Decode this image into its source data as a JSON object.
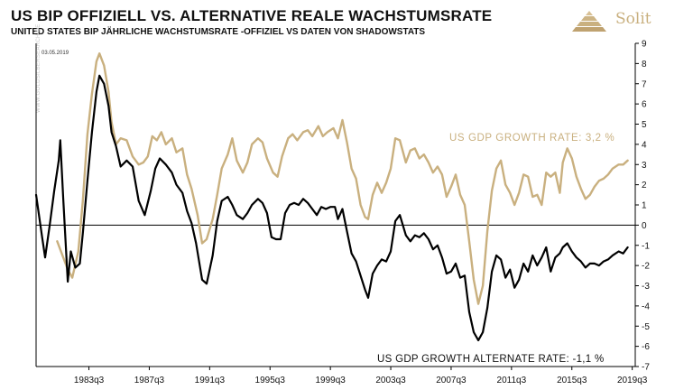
{
  "chart_data": {
    "type": "line",
    "title": "US BIP OFFIZIELL VS. ALTERNATIVE REALE WACHSTUMSRATE",
    "subtitle": "UNITED STATES BIP JÄHRLICHE WACHSTUMSRATE -OFFIZIEL VS  DATEN  VON  SHADOWSTATS",
    "date_label": "03.05.2019",
    "watermark": "WWW.GOLDSILBERSEARCH.DE",
    "brand": "Solit",
    "x_tick_labels": [
      "1983q3",
      "1987q3",
      "1991q3",
      "1995q3",
      "1999q3",
      "2003q3",
      "2007q3",
      "2011q3",
      "2015q3",
      "2019q3"
    ],
    "x_tick_years": [
      1983.5,
      1987.5,
      1991.5,
      1995.5,
      1999.5,
      2003.5,
      2007.5,
      2011.5,
      2015.5,
      2019.5
    ],
    "xlim": [
      1980.0,
      2019.7
    ],
    "ylim": [
      -7,
      9
    ],
    "y_ticks": [
      9,
      8,
      7,
      6,
      5,
      4,
      3,
      2,
      1,
      0,
      -1,
      -2,
      -3,
      -4,
      -5,
      -6,
      -7
    ],
    "annotations": {
      "official": "US GDP GROWTH RATE: 3,2 %",
      "alternate": "US GDP GROWTH ALTERNATE RATE: -1,1 %"
    },
    "series": [
      {
        "name": "US GDP growth rate (official)",
        "color": "#c9b07f",
        "points": [
          [
            1981.4,
            -0.8
          ],
          [
            1981.8,
            -1.6
          ],
          [
            1982.1,
            -2.2
          ],
          [
            1982.4,
            -2.6
          ],
          [
            1982.8,
            -1.3
          ],
          [
            1983.1,
            1.2
          ],
          [
            1983.4,
            4.5
          ],
          [
            1983.7,
            6.5
          ],
          [
            1984.0,
            8.1
          ],
          [
            1984.2,
            8.5
          ],
          [
            1984.5,
            7.9
          ],
          [
            1984.8,
            6.6
          ],
          [
            1985.0,
            5.1
          ],
          [
            1985.3,
            4.0
          ],
          [
            1985.6,
            4.3
          ],
          [
            1986.0,
            4.2
          ],
          [
            1986.4,
            3.4
          ],
          [
            1986.8,
            3.0
          ],
          [
            1987.1,
            3.1
          ],
          [
            1987.4,
            3.4
          ],
          [
            1987.7,
            4.4
          ],
          [
            1988.0,
            4.2
          ],
          [
            1988.3,
            4.6
          ],
          [
            1988.6,
            4.0
          ],
          [
            1989.0,
            4.3
          ],
          [
            1989.3,
            3.6
          ],
          [
            1989.7,
            3.8
          ],
          [
            1990.0,
            2.5
          ],
          [
            1990.3,
            1.8
          ],
          [
            1990.7,
            0.5
          ],
          [
            1991.0,
            -0.9
          ],
          [
            1991.3,
            -0.7
          ],
          [
            1991.7,
            0.3
          ],
          [
            1992.0,
            1.5
          ],
          [
            1992.3,
            2.8
          ],
          [
            1992.7,
            3.5
          ],
          [
            1993.0,
            4.3
          ],
          [
            1993.3,
            3.2
          ],
          [
            1993.7,
            2.6
          ],
          [
            1994.0,
            3.1
          ],
          [
            1994.3,
            4.0
          ],
          [
            1994.7,
            4.3
          ],
          [
            1995.0,
            4.1
          ],
          [
            1995.3,
            3.3
          ],
          [
            1995.7,
            2.6
          ],
          [
            1996.0,
            2.4
          ],
          [
            1996.3,
            3.4
          ],
          [
            1996.7,
            4.3
          ],
          [
            1997.0,
            4.5
          ],
          [
            1997.3,
            4.2
          ],
          [
            1997.7,
            4.6
          ],
          [
            1998.0,
            4.7
          ],
          [
            1998.3,
            4.4
          ],
          [
            1998.7,
            4.9
          ],
          [
            1999.0,
            4.4
          ],
          [
            1999.3,
            4.6
          ],
          [
            1999.7,
            4.8
          ],
          [
            2000.0,
            4.3
          ],
          [
            2000.3,
            5.2
          ],
          [
            2000.6,
            4.1
          ],
          [
            2000.9,
            2.8
          ],
          [
            2001.2,
            2.3
          ],
          [
            2001.5,
            1.0
          ],
          [
            2001.8,
            0.4
          ],
          [
            2002.0,
            0.3
          ],
          [
            2002.3,
            1.5
          ],
          [
            2002.6,
            2.1
          ],
          [
            2002.9,
            1.6
          ],
          [
            2003.2,
            2.1
          ],
          [
            2003.5,
            2.8
          ],
          [
            2003.8,
            4.3
          ],
          [
            2004.1,
            4.2
          ],
          [
            2004.5,
            3.1
          ],
          [
            2004.8,
            3.7
          ],
          [
            2005.1,
            3.8
          ],
          [
            2005.4,
            3.3
          ],
          [
            2005.7,
            3.5
          ],
          [
            2006.0,
            3.1
          ],
          [
            2006.3,
            2.6
          ],
          [
            2006.6,
            2.9
          ],
          [
            2006.9,
            2.5
          ],
          [
            2007.2,
            1.4
          ],
          [
            2007.5,
            1.9
          ],
          [
            2007.8,
            2.5
          ],
          [
            2008.1,
            1.5
          ],
          [
            2008.4,
            1.0
          ],
          [
            2008.7,
            -0.8
          ],
          [
            2009.0,
            -2.7
          ],
          [
            2009.3,
            -3.9
          ],
          [
            2009.6,
            -3.0
          ],
          [
            2009.9,
            -0.3
          ],
          [
            2010.2,
            1.7
          ],
          [
            2010.5,
            2.8
          ],
          [
            2010.8,
            3.2
          ],
          [
            2011.1,
            2.0
          ],
          [
            2011.4,
            1.6
          ],
          [
            2011.7,
            1.0
          ],
          [
            2012.0,
            1.6
          ],
          [
            2012.3,
            2.5
          ],
          [
            2012.6,
            2.4
          ],
          [
            2012.9,
            1.4
          ],
          [
            2013.2,
            1.5
          ],
          [
            2013.5,
            1.0
          ],
          [
            2013.8,
            2.6
          ],
          [
            2014.1,
            2.4
          ],
          [
            2014.4,
            2.6
          ],
          [
            2014.7,
            1.6
          ],
          [
            2014.9,
            3.1
          ],
          [
            2015.2,
            3.8
          ],
          [
            2015.5,
            3.3
          ],
          [
            2015.8,
            2.4
          ],
          [
            2016.1,
            1.8
          ],
          [
            2016.4,
            1.3
          ],
          [
            2016.7,
            1.5
          ],
          [
            2017.0,
            1.9
          ],
          [
            2017.3,
            2.2
          ],
          [
            2017.6,
            2.3
          ],
          [
            2017.9,
            2.5
          ],
          [
            2018.2,
            2.8
          ],
          [
            2018.6,
            3.0
          ],
          [
            2018.9,
            3.0
          ],
          [
            2019.2,
            3.2
          ]
        ]
      },
      {
        "name": "US GDP growth alternate rate (Shadowstats)",
        "color": "#000000",
        "points": [
          [
            1980.0,
            1.5
          ],
          [
            1980.4,
            -0.6
          ],
          [
            1980.6,
            -1.6
          ],
          [
            1980.9,
            0.0
          ],
          [
            1981.2,
            1.7
          ],
          [
            1981.5,
            3.2
          ],
          [
            1981.6,
            4.2
          ],
          [
            1981.8,
            1.3
          ],
          [
            1982.1,
            -2.8
          ],
          [
            1982.3,
            -1.3
          ],
          [
            1982.6,
            -2.1
          ],
          [
            1982.9,
            -1.9
          ],
          [
            1983.1,
            -0.4
          ],
          [
            1983.4,
            2.2
          ],
          [
            1983.7,
            4.6
          ],
          [
            1984.0,
            6.6
          ],
          [
            1984.2,
            7.4
          ],
          [
            1984.5,
            7.0
          ],
          [
            1984.8,
            5.9
          ],
          [
            1985.0,
            4.6
          ],
          [
            1985.3,
            3.9
          ],
          [
            1985.6,
            2.9
          ],
          [
            1986.0,
            3.2
          ],
          [
            1986.4,
            2.9
          ],
          [
            1986.8,
            1.2
          ],
          [
            1987.2,
            0.5
          ],
          [
            1987.6,
            1.7
          ],
          [
            1987.9,
            2.8
          ],
          [
            1988.2,
            3.3
          ],
          [
            1988.6,
            3.0
          ],
          [
            1989.0,
            2.6
          ],
          [
            1989.3,
            2.0
          ],
          [
            1989.7,
            1.6
          ],
          [
            1990.0,
            0.7
          ],
          [
            1990.3,
            0.1
          ],
          [
            1990.6,
            -0.9
          ],
          [
            1991.0,
            -2.7
          ],
          [
            1991.3,
            -2.9
          ],
          [
            1991.7,
            -1.5
          ],
          [
            1992.0,
            0.2
          ],
          [
            1992.3,
            1.2
          ],
          [
            1992.7,
            1.4
          ],
          [
            1993.0,
            1.0
          ],
          [
            1993.3,
            0.5
          ],
          [
            1993.7,
            0.3
          ],
          [
            1994.0,
            0.6
          ],
          [
            1994.3,
            1.0
          ],
          [
            1994.7,
            1.3
          ],
          [
            1995.0,
            1.1
          ],
          [
            1995.3,
            0.6
          ],
          [
            1995.6,
            -0.6
          ],
          [
            1995.9,
            -0.7
          ],
          [
            1996.2,
            -0.7
          ],
          [
            1996.5,
            0.6
          ],
          [
            1996.8,
            1.0
          ],
          [
            1997.1,
            1.1
          ],
          [
            1997.4,
            1.0
          ],
          [
            1997.7,
            1.3
          ],
          [
            1998.0,
            1.1
          ],
          [
            1998.3,
            0.8
          ],
          [
            1998.6,
            0.5
          ],
          [
            1998.9,
            0.9
          ],
          [
            1999.2,
            0.8
          ],
          [
            1999.5,
            0.9
          ],
          [
            1999.8,
            0.9
          ],
          [
            2000.0,
            0.3
          ],
          [
            2000.3,
            0.8
          ],
          [
            2000.6,
            -0.3
          ],
          [
            2000.9,
            -1.4
          ],
          [
            2001.2,
            -1.8
          ],
          [
            2001.5,
            -2.5
          ],
          [
            2001.8,
            -3.2
          ],
          [
            2002.0,
            -3.6
          ],
          [
            2002.3,
            -2.4
          ],
          [
            2002.6,
            -2.0
          ],
          [
            2002.9,
            -1.7
          ],
          [
            2003.2,
            -1.8
          ],
          [
            2003.5,
            -1.3
          ],
          [
            2003.8,
            0.2
          ],
          [
            2004.1,
            0.5
          ],
          [
            2004.5,
            -0.5
          ],
          [
            2004.8,
            -0.8
          ],
          [
            2005.1,
            -0.5
          ],
          [
            2005.4,
            -0.6
          ],
          [
            2005.7,
            -0.4
          ],
          [
            2006.0,
            -0.7
          ],
          [
            2006.3,
            -1.2
          ],
          [
            2006.6,
            -1.0
          ],
          [
            2006.9,
            -1.6
          ],
          [
            2007.2,
            -2.4
          ],
          [
            2007.5,
            -2.3
          ],
          [
            2007.8,
            -1.9
          ],
          [
            2008.1,
            -2.6
          ],
          [
            2008.4,
            -2.5
          ],
          [
            2008.7,
            -4.3
          ],
          [
            2009.0,
            -5.3
          ],
          [
            2009.3,
            -5.7
          ],
          [
            2009.6,
            -5.3
          ],
          [
            2009.9,
            -4.1
          ],
          [
            2010.2,
            -2.3
          ],
          [
            2010.5,
            -1.5
          ],
          [
            2010.8,
            -1.7
          ],
          [
            2011.1,
            -2.6
          ],
          [
            2011.4,
            -2.2
          ],
          [
            2011.7,
            -3.1
          ],
          [
            2012.0,
            -2.7
          ],
          [
            2012.3,
            -1.9
          ],
          [
            2012.6,
            -2.3
          ],
          [
            2012.9,
            -1.5
          ],
          [
            2013.2,
            -2.0
          ],
          [
            2013.5,
            -1.6
          ],
          [
            2013.8,
            -1.1
          ],
          [
            2014.1,
            -2.3
          ],
          [
            2014.4,
            -1.6
          ],
          [
            2014.7,
            -1.4
          ],
          [
            2014.9,
            -1.1
          ],
          [
            2015.2,
            -0.9
          ],
          [
            2015.5,
            -1.3
          ],
          [
            2015.8,
            -1.6
          ],
          [
            2016.1,
            -1.8
          ],
          [
            2016.4,
            -2.1
          ],
          [
            2016.7,
            -1.9
          ],
          [
            2017.0,
            -1.9
          ],
          [
            2017.3,
            -2.0
          ],
          [
            2017.6,
            -1.8
          ],
          [
            2017.9,
            -1.7
          ],
          [
            2018.2,
            -1.5
          ],
          [
            2018.6,
            -1.3
          ],
          [
            2018.9,
            -1.4
          ],
          [
            2019.2,
            -1.1
          ]
        ]
      }
    ]
  }
}
